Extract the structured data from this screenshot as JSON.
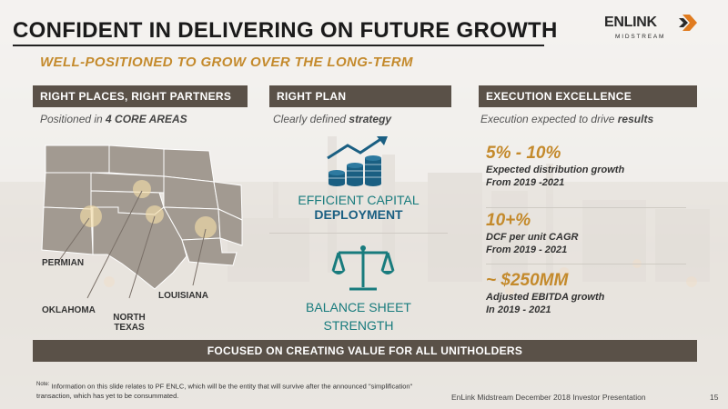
{
  "header": {
    "title": "CONFIDENT IN DELIVERING ON FUTURE GROWTH",
    "subtitle": "WELL-POSITIONED TO GROW OVER THE LONG-TERM"
  },
  "logo": {
    "main": "ENLINK",
    "sub": "MIDSTREAM"
  },
  "columns": {
    "left": {
      "heading": "RIGHT PLACES, RIGHT PARTNERS",
      "sub_prefix": "Positioned in ",
      "sub_emph": "4 CORE AREAS",
      "map_labels": {
        "permian": "PERMIAN",
        "oklahoma": "OKLAHOMA",
        "north_texas_1": "NORTH",
        "north_texas_2": "TEXAS",
        "louisiana": "LOUISIANA"
      }
    },
    "middle": {
      "heading": "RIGHT PLAN",
      "sub_prefix": "Clearly defined ",
      "sub_emph": "strategy",
      "items": [
        {
          "line1": "EFFICIENT CAPITAL",
          "line2": "DEPLOYMENT",
          "icon": "coins-growth-icon"
        },
        {
          "line1": "BALANCE SHEET",
          "line2": "STRENGTH",
          "icon": "scales-icon"
        }
      ]
    },
    "right": {
      "heading": "EXECUTION EXCELLENCE",
      "sub_prefix": "Execution expected to drive ",
      "sub_emph": "results",
      "metrics": [
        {
          "value": "5% - 10%",
          "desc1": "Expected distribution growth",
          "desc2": "From 2019 -2021"
        },
        {
          "value": "10+%",
          "desc1": "DCF per unit CAGR",
          "desc2": "From 2019 - 2021"
        },
        {
          "value": "~ $250MM",
          "desc1": "Adjusted EBITDA growth",
          "desc2": "In 2019 - 2021"
        }
      ]
    }
  },
  "banner": "FOCUSED ON CREATING VALUE FOR ALL UNITHOLDERS",
  "note": {
    "label": "Note:",
    "text": "Information on this slide relates to PF ENLC, which will be the entity that will survive after the announced \"simplification\" transaction, which has yet to be consummated."
  },
  "footer": {
    "text": "EnLink Midstream December 2018 Investor Presentation",
    "page": "15"
  },
  "colors": {
    "accent": "#c48a2c",
    "header_bg": "#5a5148",
    "teal": "#187b7d",
    "blue": "#1a5f82",
    "logo_orange": "#e07b1f"
  }
}
